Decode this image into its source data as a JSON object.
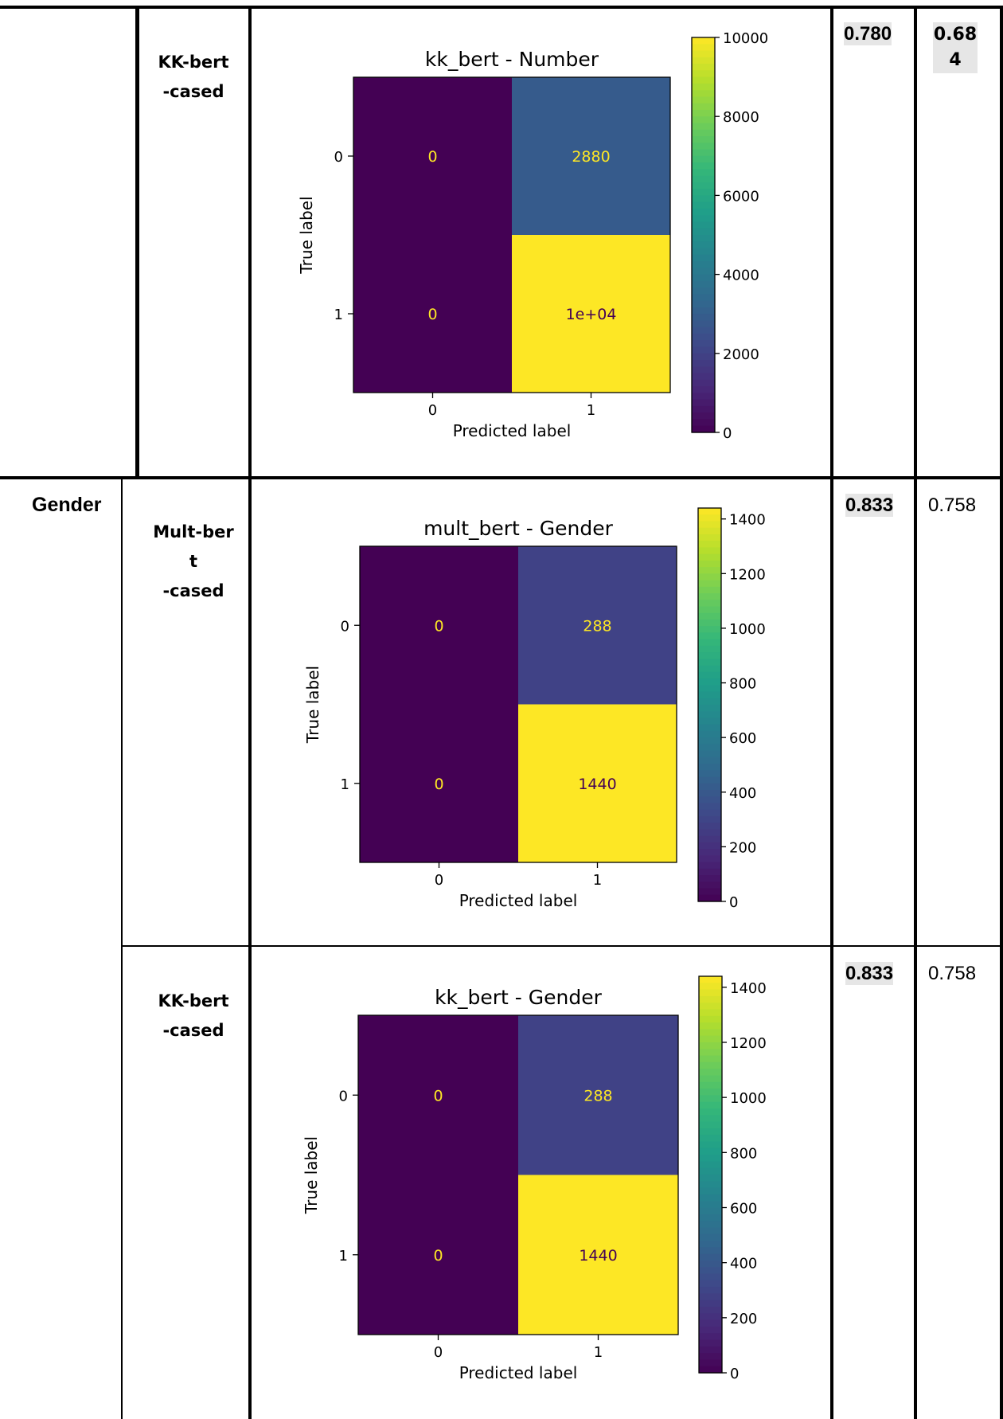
{
  "rows": [
    {
      "task": "",
      "model": "KK-bert\n-cased",
      "score_a": "0.780",
      "score_b": "0.68\n4",
      "score_b_highlight": true,
      "chart_data": {
        "type": "heatmap",
        "title": "kk_bert - Number",
        "xlabel": "Predicted label",
        "ylabel": "True label",
        "x_categories": [
          "0",
          "1"
        ],
        "y_categories": [
          "0",
          "1"
        ],
        "values": [
          [
            0,
            2880
          ],
          [
            0,
            10000
          ]
        ],
        "cell_labels": [
          [
            "0",
            "2880"
          ],
          [
            "0",
            "1e+04"
          ]
        ],
        "colorbar_ticks": [
          "0",
          "2000",
          "4000",
          "6000",
          "8000",
          "10000"
        ],
        "colorbar_range": [
          0,
          10000
        ],
        "colormap": "viridis"
      }
    },
    {
      "task": "Gender",
      "model": "Mult-ber\nt\n-cased",
      "score_a": "0.833",
      "score_b": "0.758",
      "score_b_highlight": false,
      "chart_data": {
        "type": "heatmap",
        "title": "mult_bert - Gender",
        "xlabel": "Predicted label",
        "ylabel": "True label",
        "x_categories": [
          "0",
          "1"
        ],
        "y_categories": [
          "0",
          "1"
        ],
        "values": [
          [
            0,
            288
          ],
          [
            0,
            1440
          ]
        ],
        "cell_labels": [
          [
            "0",
            "288"
          ],
          [
            "0",
            "1440"
          ]
        ],
        "colorbar_ticks": [
          "0",
          "200",
          "400",
          "600",
          "800",
          "1000",
          "1200",
          "1400"
        ],
        "colorbar_range": [
          0,
          1440
        ],
        "colormap": "viridis"
      }
    },
    {
      "task": "",
      "model": "KK-bert\n-cased",
      "score_a": "0.833",
      "score_b": "0.758",
      "score_b_highlight": false,
      "chart_data": {
        "type": "heatmap",
        "title": "kk_bert - Gender",
        "xlabel": "Predicted label",
        "ylabel": "True label",
        "x_categories": [
          "0",
          "1"
        ],
        "y_categories": [
          "0",
          "1"
        ],
        "values": [
          [
            0,
            288
          ],
          [
            0,
            1440
          ]
        ],
        "cell_labels": [
          [
            "0",
            "288"
          ],
          [
            "0",
            "1440"
          ]
        ],
        "colorbar_ticks": [
          "0",
          "200",
          "400",
          "600",
          "800",
          "1000",
          "1200",
          "1400"
        ],
        "colorbar_range": [
          0,
          1440
        ],
        "colormap": "viridis"
      }
    }
  ]
}
